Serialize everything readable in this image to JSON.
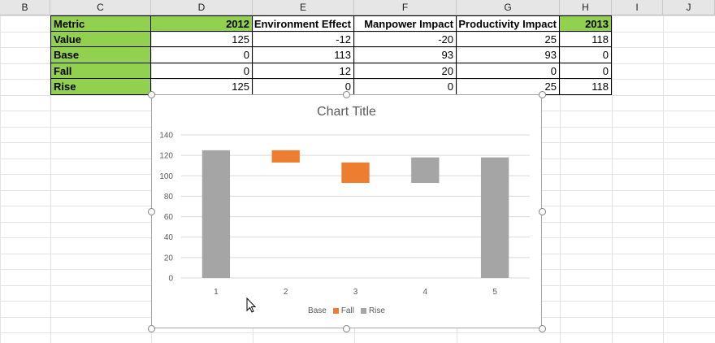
{
  "columns": [
    "B",
    "C",
    "D",
    "E",
    "F",
    "G",
    "H",
    "I",
    "J"
  ],
  "table": {
    "headers": [
      "Metric",
      "2012",
      "Environment Effect",
      "Manpower Impact",
      "Productivity Impact",
      "2013"
    ],
    "rows": [
      {
        "label": "Value",
        "values": [
          "125",
          "-12",
          "-20",
          "25",
          "118"
        ]
      },
      {
        "label": "Base",
        "values": [
          "0",
          "113",
          "93",
          "93",
          "0"
        ]
      },
      {
        "label": "Fall",
        "values": [
          "0",
          "12",
          "20",
          "0",
          "0"
        ]
      },
      {
        "label": "Rise",
        "values": [
          "125",
          "0",
          "0",
          "25",
          "118"
        ]
      }
    ]
  },
  "colors": {
    "fall": "#ed7d31",
    "rise": "#a5a5a5",
    "grid": "#d9d9d9",
    "header_fill": "#92d050"
  },
  "chart_data": {
    "type": "bar",
    "stacked": true,
    "title": "Chart Title",
    "categories": [
      "1",
      "2",
      "3",
      "4",
      "5"
    ],
    "series": [
      {
        "name": "Base",
        "values": [
          0,
          113,
          93,
          93,
          0
        ],
        "visible": false
      },
      {
        "name": "Fall",
        "values": [
          0,
          12,
          20,
          0,
          0
        ]
      },
      {
        "name": "Rise",
        "values": [
          125,
          0,
          0,
          25,
          118
        ]
      }
    ],
    "ylim": [
      0,
      140
    ],
    "yticks": [
      0,
      20,
      40,
      60,
      80,
      100,
      120,
      140
    ],
    "grid": true,
    "legend": "bottom"
  }
}
